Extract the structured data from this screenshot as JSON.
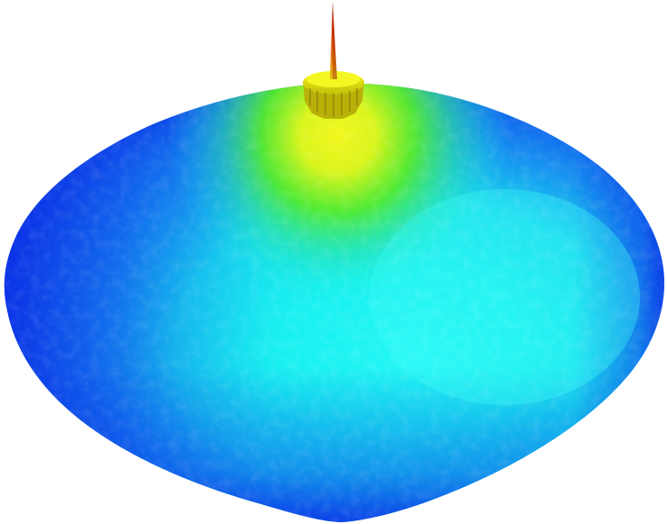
{
  "scene": {
    "subject": "surface-plot",
    "colormap": "jet",
    "colors": {
      "background": "#ffffff",
      "low_edge": "#0a2ee6",
      "mid_blue": "#1c8cf0",
      "cyan": "#19f2f2",
      "green": "#3cec2a",
      "yellow": "#ecf51a",
      "peak_yellow": "#d8d40a",
      "spike_orange": "#e2660c",
      "spike_red": "#b8160a"
    }
  }
}
